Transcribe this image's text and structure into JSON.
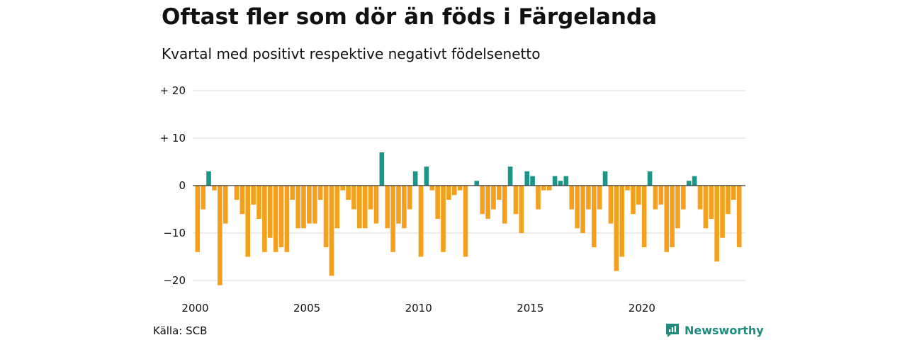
{
  "title": "Oftast fler som dör än föds i Färgelanda",
  "subtitle": "Kvartal med positivt respektive negativt födelsenetto",
  "source": "Källa: SCB",
  "brand": {
    "name": "Newsworthy",
    "icon": "newsworthy-logo-icon"
  },
  "colors": {
    "positive": "#1a9587",
    "negative": "#f5a01c",
    "grid": "#d9d9d9",
    "zero_line": "#333333"
  },
  "chart_data": {
    "type": "bar",
    "x_start_year": 2000,
    "periods_per_year": 4,
    "values": [
      -14,
      -5,
      3,
      -1,
      -21,
      -8,
      0,
      -3,
      -6,
      -15,
      -4,
      -7,
      -14,
      -11,
      -14,
      -13,
      -14,
      -3,
      -9,
      -9,
      -8,
      -8,
      -3,
      -13,
      -19,
      -9,
      -1,
      -3,
      -5,
      -9,
      -9,
      -5,
      -8,
      7,
      -9,
      -14,
      -8,
      -9,
      -5,
      3,
      -15,
      4,
      -1,
      -7,
      -14,
      -3,
      -2,
      -1,
      -15,
      0,
      1,
      -6,
      -7,
      -5,
      -3,
      -8,
      4,
      -6,
      -10,
      3,
      2,
      -5,
      -1,
      -1,
      2,
      1,
      2,
      -5,
      -9,
      -10,
      -5,
      -13,
      -5,
      3,
      -8,
      -18,
      -15,
      -1,
      -6,
      -4,
      -13,
      3,
      -5,
      -4,
      -14,
      -13,
      -9,
      -5,
      1,
      2,
      -5,
      -9,
      -7,
      -16,
      -11,
      -6,
      -3,
      -13
    ],
    "yticks": [
      20,
      10,
      0,
      -10,
      -20
    ],
    "ytick_labels": [
      "+ 20",
      "+ 10",
      "0",
      "−10",
      "−20"
    ],
    "xticks": [
      2000,
      2005,
      2010,
      2015,
      2020
    ],
    "xtick_labels": [
      "2000",
      "2005",
      "2010",
      "2015",
      "2020"
    ],
    "ylim": [
      -21,
      20
    ],
    "grid": true
  }
}
